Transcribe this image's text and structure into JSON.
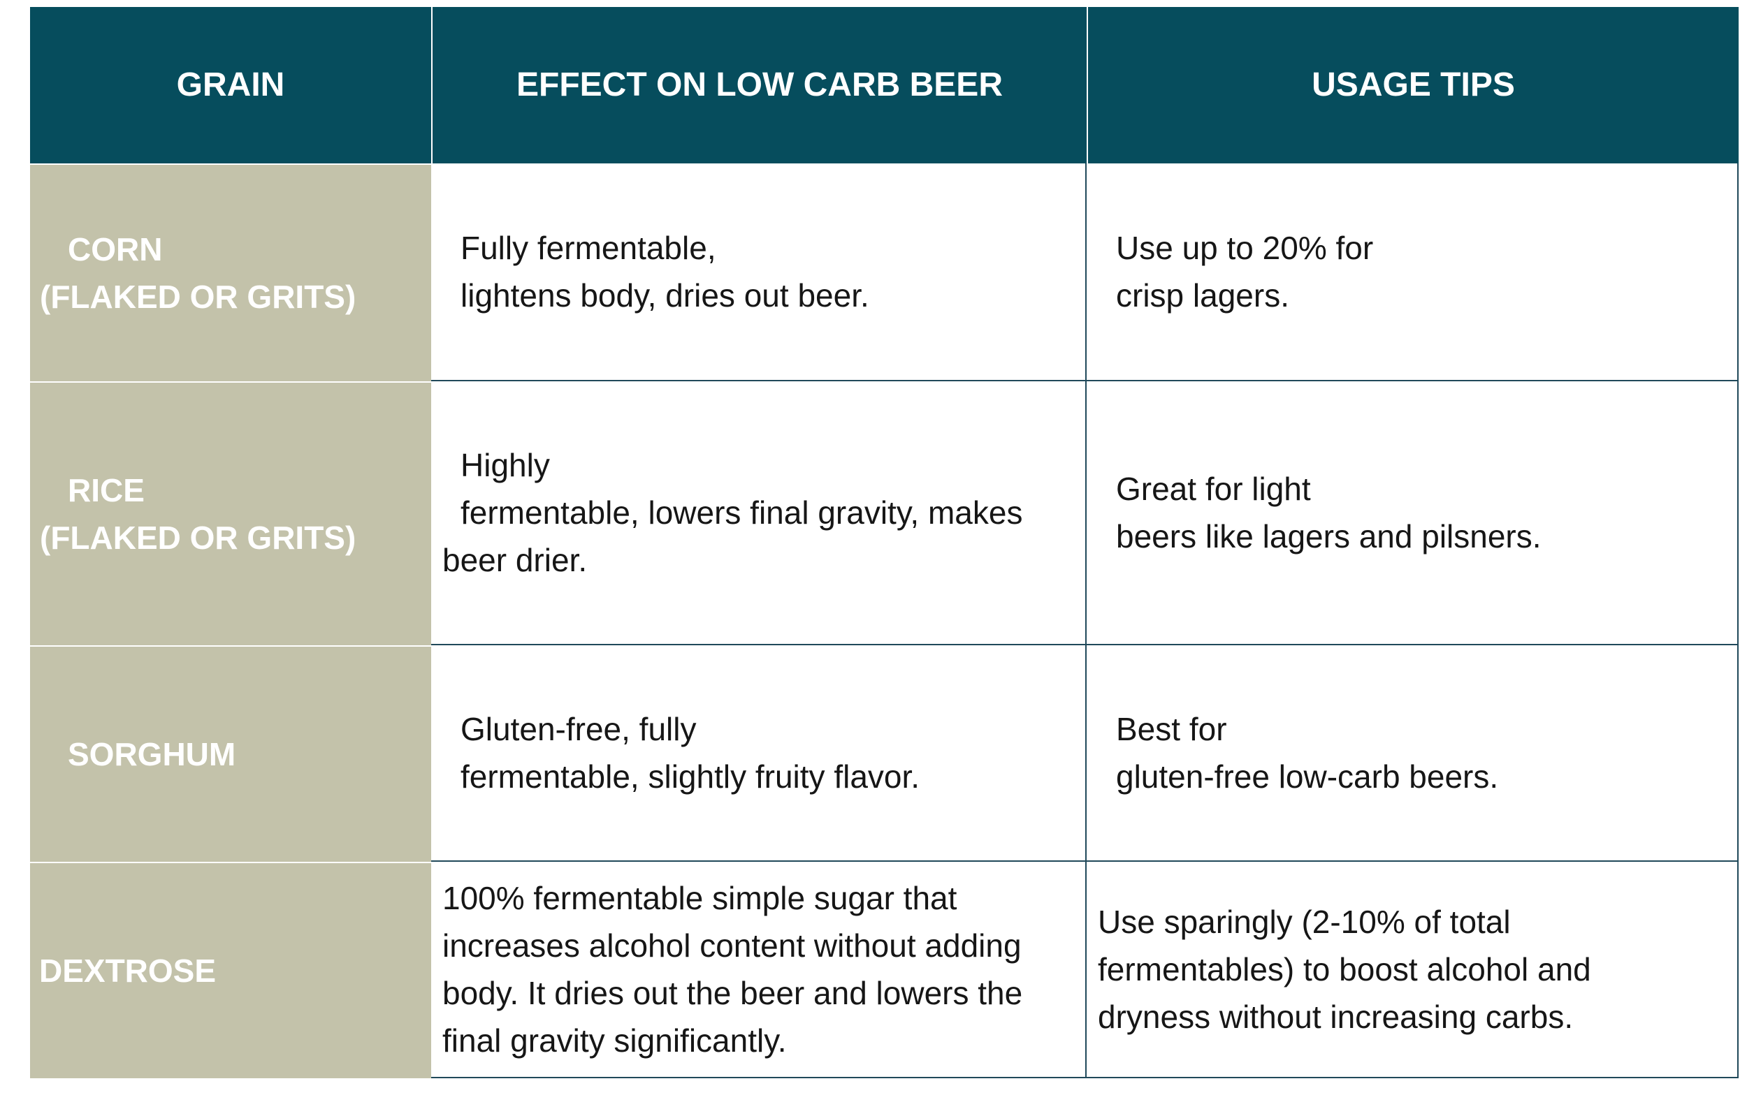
{
  "header": {
    "col1": "GRAIN",
    "col2": "EFFECT ON LOW CARB BEER",
    "col3": "USAGE TIPS"
  },
  "rows": [
    {
      "grain": [
        "CORN",
        "(FLAKED OR GRITS)"
      ],
      "effect": [
        "Fully fermentable,",
        "lightens body, dries out beer."
      ],
      "tips": [
        "Use up to 20% for",
        "crisp lagers."
      ]
    },
    {
      "grain": [
        "RICE",
        "(FLAKED OR GRITS)"
      ],
      "effect": [
        "Highly",
        "fermentable, lowers final gravity, makes",
        "beer drier."
      ],
      "tips": [
        "Great for light",
        "beers like lagers and pilsners."
      ]
    },
    {
      "grain": [
        "SORGHUM"
      ],
      "effect": [
        "Gluten-free, fully",
        "fermentable, slightly fruity flavor."
      ],
      "tips": [
        "Best for",
        "gluten-free low-carb beers."
      ]
    },
    {
      "grain": [
        "DEXTROSE"
      ],
      "effect": [
        "100% fermentable simple sugar that",
        "increases alcohol content without adding",
        "body. It dries out the beer and lowers the",
        "final gravity significantly."
      ],
      "tips": [
        "Use sparingly (2-10% of total",
        "fermentables) to boost alcohol and",
        "dryness without increasing carbs."
      ]
    }
  ],
  "colors": {
    "header_bg": "#064d5d",
    "grain_bg": "#c3c2aa",
    "border": "#20495a"
  }
}
